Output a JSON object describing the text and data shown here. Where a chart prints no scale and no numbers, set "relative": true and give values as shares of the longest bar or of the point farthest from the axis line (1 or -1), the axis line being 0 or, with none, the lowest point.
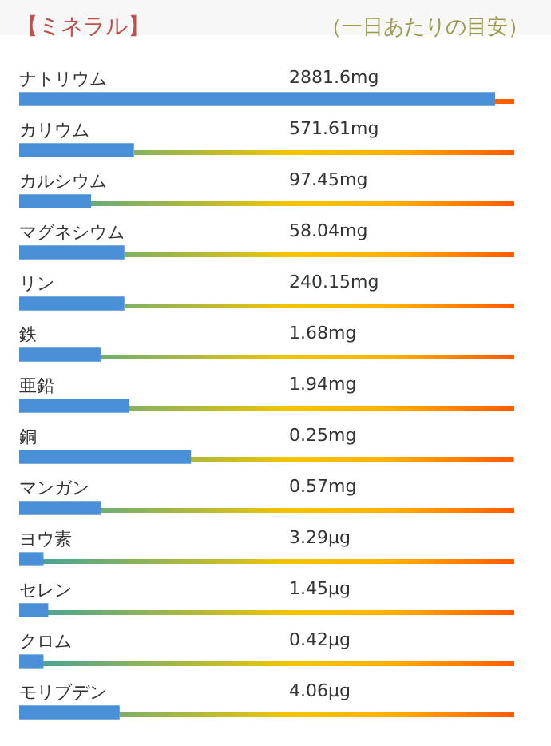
{
  "chart_data": {
    "type": "bar",
    "title": "【ミネラル】",
    "subtitle": "（一日あたりの目安）",
    "orientation": "horizontal",
    "relative": true,
    "categories": [
      "ナトリウム",
      "カリウム",
      "カルシウム",
      "マグネシウム",
      "リン",
      "鉄",
      "亜鉛",
      "銅",
      "マンガン",
      "ヨウ素",
      "セレン",
      "クロム",
      "モリブデン"
    ],
    "values": [
      1,
      0.24,
      0.15,
      0.22,
      0.22,
      0.17,
      0.23,
      0.36,
      0.17,
      0.05,
      0.06,
      0.05,
      0.21
    ],
    "annotations": [
      "2881.6mg",
      "571.61mg",
      "97.45mg",
      "58.04mg",
      "240.15mg",
      "1.68mg",
      "1.94mg",
      "0.25mg",
      "0.57mg",
      "3.29μg",
      "1.45μg",
      "0.42μg",
      "4.06μg"
    ],
    "color": "#4a90d9"
  }
}
